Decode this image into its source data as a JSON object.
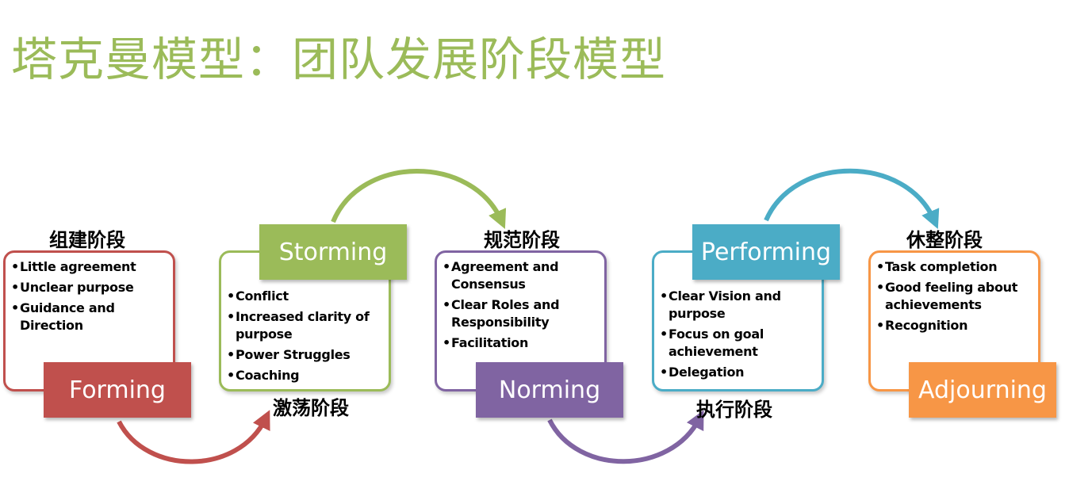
{
  "title": "塔克曼模型：团队发展阶段模型",
  "colors": {
    "title": "#9bbb59",
    "forming": "#c0504d",
    "storming": "#9bbb59",
    "norming": "#8064a2",
    "performing": "#4bacc6",
    "adjourning": "#f79646"
  },
  "stages": {
    "forming": {
      "name": "Forming",
      "cn": "组建阶段",
      "items": [
        "Little agreement",
        "Unclear purpose",
        "Guidance and Direction"
      ]
    },
    "storming": {
      "name": "Storming",
      "cn": "激荡阶段",
      "items": [
        "Conflict",
        "Increased clarity of purpose",
        "Power Struggles",
        "Coaching"
      ]
    },
    "norming": {
      "name": "Norming",
      "cn": "规范阶段",
      "items": [
        "Agreement and Consensus",
        "Clear Roles and Responsibility",
        "Facilitation"
      ]
    },
    "performing": {
      "name": "Performing",
      "cn": "执行阶段",
      "items": [
        "Clear Vision and purpose",
        "Focus on goal achievement",
        "Delegation"
      ]
    },
    "adjourning": {
      "name": "Adjourning",
      "cn": "休整阶段",
      "items": [
        "Task completion",
        "Good feeling about achievements",
        "Recognition"
      ]
    }
  }
}
